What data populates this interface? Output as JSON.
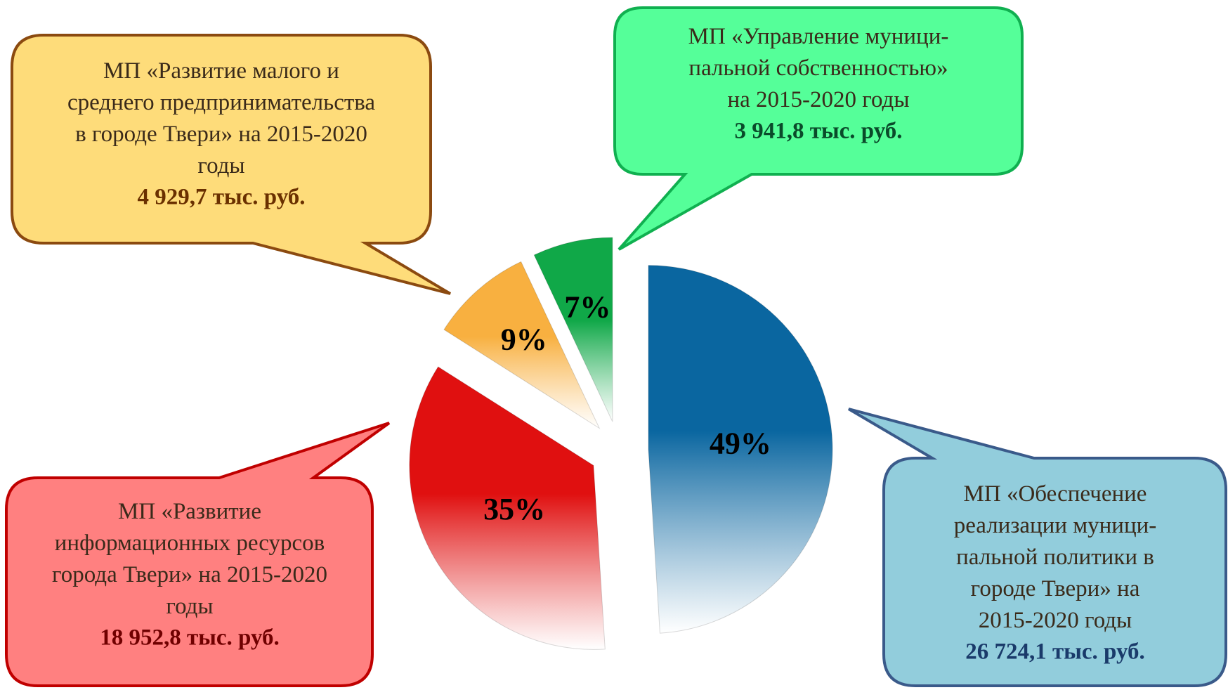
{
  "chart_data": {
    "type": "pie",
    "categories": [
      "МП «Обеспечение\nреализации муници-\nпальной политики в\nгороде Твери» на\n2015-2020 годы",
      "МП «Развитие\nинформационных ресурсов\nгорода Твери» на 2015-2020\nгоды",
      "МП «Развитие малого и\nсреднего предпринимательства\nв городе Твери» на 2015-2020\nгоды",
      "МП «Управление муници-\nпальной собственностью»\nна 2015-2020 годы"
    ],
    "values": [
      49,
      35,
      9,
      7
    ],
    "value_labels": [
      "49%",
      "35%",
      "9%",
      "7%"
    ],
    "amount_labels": [
      "26 724,1 тыс. руб.",
      "18 952,8 тыс. руб.",
      "4 929,7 тыс. руб.",
      "3 941,8 тыс. руб."
    ],
    "colors": [
      "#0a66a0",
      "#e01010",
      "#f8b040",
      "#10a848"
    ]
  }
}
